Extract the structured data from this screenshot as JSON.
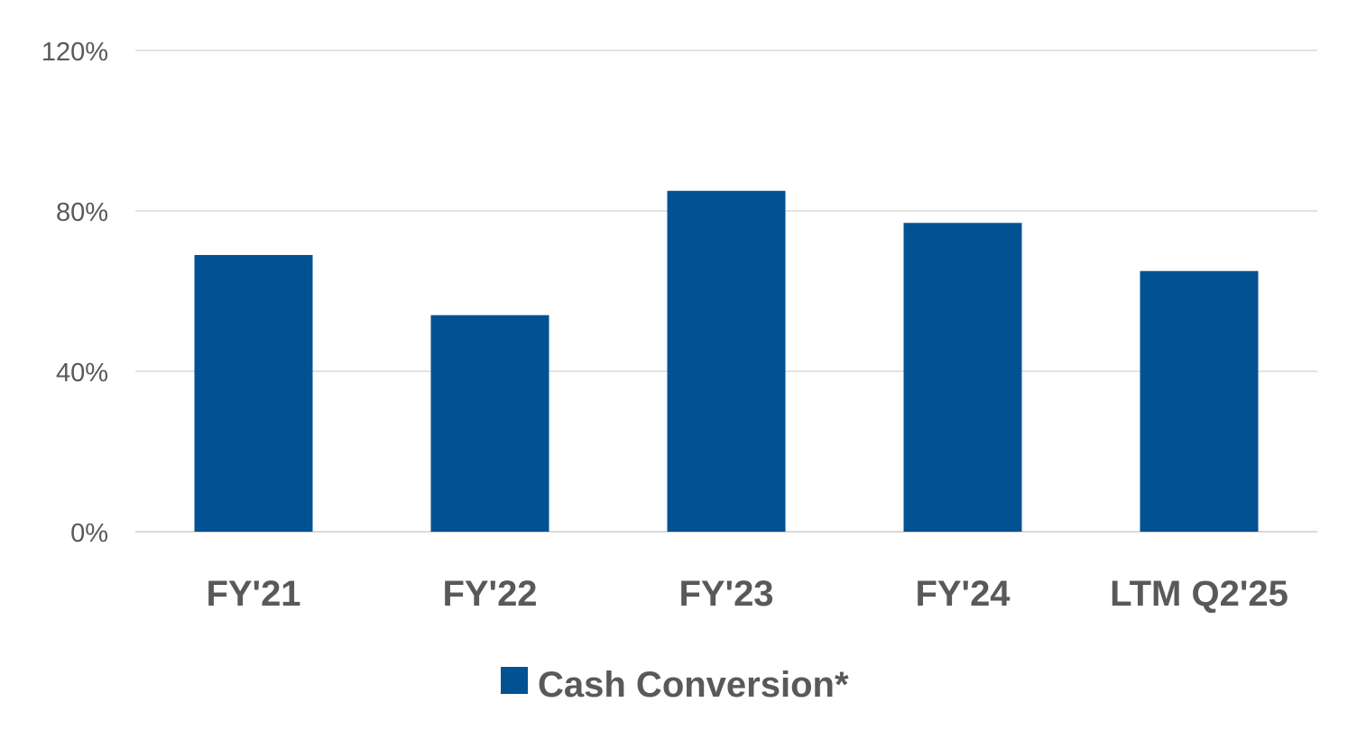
{
  "chart_data": {
    "type": "bar",
    "categories": [
      "FY'21",
      "FY'22",
      "FY'23",
      "FY'24",
      "LTM Q2'25"
    ],
    "series": [
      {
        "name": "Cash Conversion*",
        "values": [
          69,
          54,
          85,
          77,
          65
        ],
        "color": "#005293"
      }
    ],
    "yticks": [
      0,
      40,
      80,
      120
    ],
    "ytick_labels": [
      "0%",
      "40%",
      "80%",
      "120%"
    ],
    "ylim": [
      0,
      120
    ],
    "grid": true,
    "legend_position": "bottom-center"
  }
}
